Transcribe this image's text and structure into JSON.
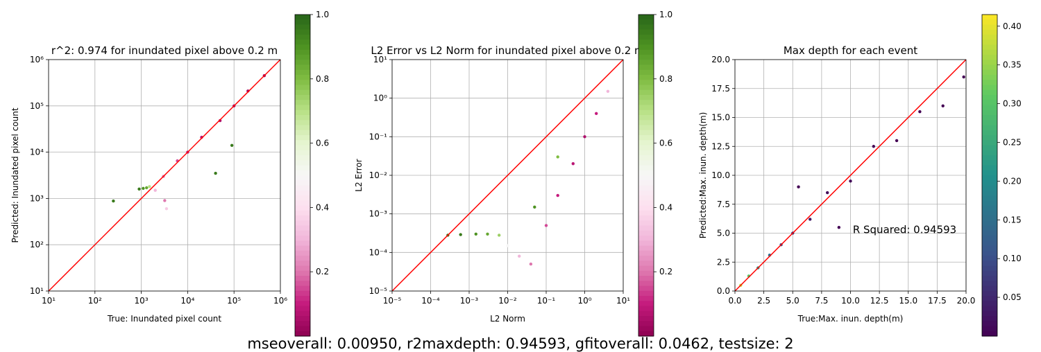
{
  "chart_data": [
    {
      "type": "scatter",
      "title": "r^2: 0.974 for inundated pixel above 0.2 m",
      "xlabel": "True: Inundated pixel count",
      "ylabel": "Predicted: Inundated pixel count",
      "xscale": "log",
      "yscale": "log",
      "xlim": [
        10,
        1000000
      ],
      "ylim": [
        10,
        1000000
      ],
      "x_ticks": [
        "10^1",
        "10^2",
        "10^3",
        "10^4",
        "10^5",
        "10^6"
      ],
      "y_ticks": [
        "10^1",
        "10^2",
        "10^3",
        "10^4",
        "10^5",
        "10^6"
      ],
      "grid": true,
      "reference_line": {
        "x": [
          10,
          1000000
        ],
        "y": [
          10,
          1000000
        ],
        "color": "#ff0000"
      },
      "colormap": "PiYG",
      "colorbar": {
        "range": [
          0,
          1
        ],
        "ticks": [
          "0.2",
          "0.4",
          "0.6",
          "0.8",
          "1.0"
        ]
      },
      "series": [
        {
          "points": [
            {
              "x": 900,
              "y": 1600,
              "c": 0.95
            },
            {
              "x": 1100,
              "y": 1650,
              "c": 0.9
            },
            {
              "x": 1300,
              "y": 1700,
              "c": 0.85
            },
            {
              "x": 250,
              "y": 880,
              "c": 0.95
            },
            {
              "x": 1500,
              "y": 1800,
              "c": 0.7
            },
            {
              "x": 2000,
              "y": 1500,
              "c": 0.3
            },
            {
              "x": 3000,
              "y": 3000,
              "c": 0.2
            },
            {
              "x": 6000,
              "y": 6500,
              "c": 0.15
            },
            {
              "x": 10000,
              "y": 10000,
              "c": 0.1
            },
            {
              "x": 20000,
              "y": 21000,
              "c": 0.08
            },
            {
              "x": 50000,
              "y": 48000,
              "c": 0.06
            },
            {
              "x": 100000,
              "y": 100000,
              "c": 0.05
            },
            {
              "x": 200000,
              "y": 210000,
              "c": 0.04
            },
            {
              "x": 450000,
              "y": 450000,
              "c": 0.03
            },
            {
              "x": 40000,
              "y": 3500,
              "c": 0.95
            },
            {
              "x": 90000,
              "y": 14000,
              "c": 0.95
            },
            {
              "x": 3200,
              "y": 900,
              "c": 0.2
            },
            {
              "x": 3500,
              "y": 600,
              "c": 0.35
            }
          ]
        }
      ]
    },
    {
      "type": "scatter",
      "title": "L2 Error vs L2 Norm for inundated pixel above 0.2 m",
      "xlabel": "L2 Norm",
      "ylabel": "L2 Error",
      "xscale": "log",
      "yscale": "log",
      "xlim": [
        1e-05,
        10
      ],
      "ylim": [
        1e-05,
        10
      ],
      "x_ticks": [
        "10^-5",
        "10^-4",
        "10^-3",
        "10^-2",
        "10^-1",
        "10^0",
        "10^1"
      ],
      "y_ticks": [
        "10^-5",
        "10^-4",
        "10^-3",
        "10^-2",
        "10^-1",
        "10^0",
        "10^1"
      ],
      "grid": true,
      "reference_line": {
        "x": [
          1e-05,
          10
        ],
        "y": [
          1e-05,
          10
        ],
        "color": "#ff0000"
      },
      "colormap": "PiYG",
      "colorbar": {
        "range": [
          0,
          1
        ],
        "ticks": [
          "0.2",
          "0.4",
          "0.6",
          "0.8",
          "1.0"
        ]
      },
      "series": [
        {
          "points": [
            {
              "x": 0.00028,
              "y": 0.00028,
              "c": 0.95
            },
            {
              "x": 0.0006,
              "y": 0.00029,
              "c": 0.95
            },
            {
              "x": 0.0015,
              "y": 0.0003,
              "c": 0.9
            },
            {
              "x": 0.003,
              "y": 0.0003,
              "c": 0.85
            },
            {
              "x": 0.006,
              "y": 0.00028,
              "c": 0.75
            },
            {
              "x": 0.01,
              "y": 0.00015,
              "c": 0.5
            },
            {
              "x": 0.02,
              "y": 8e-05,
              "c": 0.3
            },
            {
              "x": 0.04,
              "y": 5e-05,
              "c": 0.2
            },
            {
              "x": 0.1,
              "y": 0.0005,
              "c": 0.15
            },
            {
              "x": 0.2,
              "y": 0.003,
              "c": 0.1
            },
            {
              "x": 0.5,
              "y": 0.02,
              "c": 0.08
            },
            {
              "x": 1.0,
              "y": 0.1,
              "c": 0.06
            },
            {
              "x": 2.0,
              "y": 0.4,
              "c": 0.1
            },
            {
              "x": 4.0,
              "y": 1.5,
              "c": 0.3
            },
            {
              "x": 0.2,
              "y": 0.03,
              "c": 0.8
            },
            {
              "x": 0.05,
              "y": 0.0015,
              "c": 0.9
            }
          ]
        }
      ]
    },
    {
      "type": "scatter",
      "title": "Max depth for each event",
      "xlabel": "True:Max. inun. depth(m)",
      "ylabel": "Predicted:Max. inun. depth(m)",
      "xlim": [
        0,
        20
      ],
      "ylim": [
        0,
        20
      ],
      "x_ticks": [
        "0.0",
        "2.5",
        "5.0",
        "7.5",
        "10.0",
        "12.5",
        "15.0",
        "17.5",
        "20.0"
      ],
      "y_ticks": [
        "0.0",
        "2.5",
        "5.0",
        "7.5",
        "10.0",
        "12.5",
        "15.0",
        "17.5",
        "20.0"
      ],
      "grid": true,
      "reference_line": {
        "x": [
          0,
          20
        ],
        "y": [
          0,
          20
        ],
        "color": "#ff0000"
      },
      "annotation": "R Squared: 0.94593",
      "colormap": "viridis",
      "colorbar": {
        "range": [
          0,
          0.415
        ],
        "ticks": [
          "0.05",
          "0.10",
          "0.15",
          "0.20",
          "0.25",
          "0.30",
          "0.35",
          "0.40"
        ]
      },
      "series": [
        {
          "points": [
            {
              "x": 0.5,
              "y": 0.5,
              "c": 0.38
            },
            {
              "x": 1.2,
              "y": 1.3,
              "c": 0.3
            },
            {
              "x": 2.0,
              "y": 2.0,
              "c": 0.22
            },
            {
              "x": 3.0,
              "y": 3.1,
              "c": 0.15
            },
            {
              "x": 4.0,
              "y": 4.0,
              "c": 0.1
            },
            {
              "x": 5.0,
              "y": 5.0,
              "c": 0.06
            },
            {
              "x": 6.5,
              "y": 6.2,
              "c": 0.03
            },
            {
              "x": 8.0,
              "y": 8.5,
              "c": 0.01
            },
            {
              "x": 10.0,
              "y": 9.5,
              "c": 0.01
            },
            {
              "x": 12.0,
              "y": 12.5,
              "c": 0.0
            },
            {
              "x": 14.0,
              "y": 13.0,
              "c": 0.0
            },
            {
              "x": 16.0,
              "y": 15.5,
              "c": 0.0
            },
            {
              "x": 18.0,
              "y": 16.0,
              "c": 0.0
            },
            {
              "x": 19.8,
              "y": 18.5,
              "c": 0.0
            },
            {
              "x": 5.5,
              "y": 9.0,
              "c": 0.0
            },
            {
              "x": 9.0,
              "y": 5.5,
              "c": 0.0
            }
          ]
        }
      ]
    }
  ],
  "footer": "mseoverall: 0.00950, r2maxdepth: 0.94593, gfitoverall: 0.0462, testsize: 2"
}
